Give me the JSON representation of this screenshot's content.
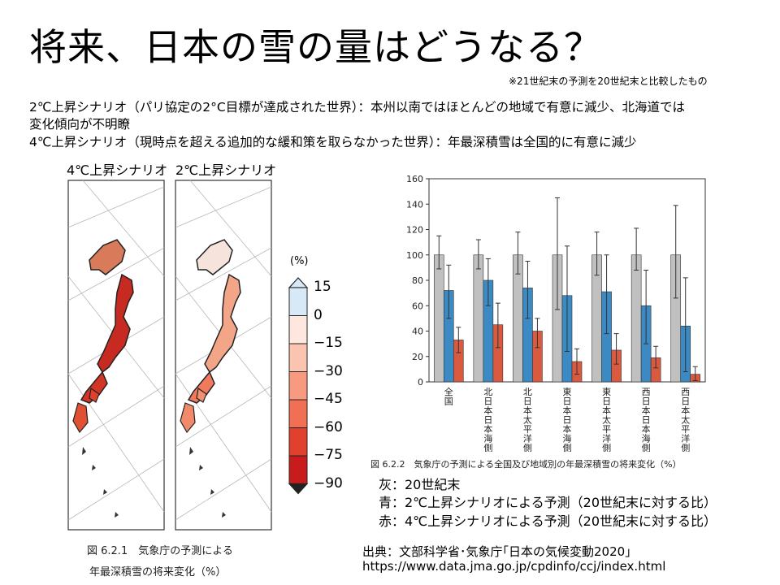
{
  "slide": {
    "title": "将来、日本の雪の量はどうなる？",
    "note": "※21世紀末の予測を20世紀末と比較したもの",
    "description_lines": [
      "2℃上昇シナリオ（パリ協定の2°C目標が達成された世界）：本州以南ではほとんどの地域で有意に減少、北海道では",
      "変化傾向が不明瞭",
      "4℃上昇シナリオ（現時点を超える追加的な緩和策を取らなかった世界）：年最深積雪は全国的に有意に減少"
    ]
  },
  "maps": {
    "labels": [
      "4℃上昇シナリオ",
      "2℃上昇シナリオ"
    ],
    "caption_line1": "図 6.2.1　気象庁の予測による",
    "caption_line2": "年最深積雪の将来変化（%）",
    "colorbar": {
      "unit": "(%)",
      "ticks": [
        "15",
        "0",
        "−15",
        "−30",
        "−45",
        "−60",
        "−75",
        "−90"
      ],
      "colors": [
        "#d7e8f7",
        "#fde7de",
        "#fbc4b0",
        "#f79a80",
        "#f06f55",
        "#e0402d",
        "#c81b1b"
      ]
    }
  },
  "chart_data": {
    "type": "bar",
    "caption": "図 6.2.2　気象庁の予測による全国及び地域別の年最深積雪の将来変化（%）",
    "categories": [
      "全国",
      "北日本日本海側",
      "北日本太平洋側",
      "東日本日本海側",
      "東日本太平洋側",
      "西日本日本海側",
      "西日本太平洋側"
    ],
    "series": [
      {
        "color": "#c0c0c0",
        "values": [
          100,
          100,
          100,
          100,
          100,
          100,
          100
        ],
        "err_low": [
          89,
          89,
          85,
          57,
          84,
          88,
          66
        ],
        "err_high": [
          115,
          112,
          118,
          145,
          118,
          121,
          139
        ]
      },
      {
        "color": "#3b8ac4",
        "values": [
          72,
          80,
          74,
          68,
          71,
          60,
          44
        ],
        "err_low": [
          50,
          60,
          50,
          24,
          38,
          30,
          8
        ],
        "err_high": [
          92,
          97,
          95,
          107,
          100,
          88,
          82
        ]
      },
      {
        "color": "#d95a3f",
        "values": [
          33,
          45,
          40,
          16,
          25,
          19,
          6
        ],
        "err_low": [
          23,
          27,
          27,
          6,
          14,
          11,
          1
        ],
        "err_high": [
          43,
          62,
          50,
          26,
          38,
          28,
          12
        ]
      }
    ],
    "ylim": [
      0,
      160
    ],
    "yticks": [
      0,
      20,
      40,
      60,
      80,
      100,
      120,
      140,
      160
    ],
    "grid": false,
    "legend_lines": [
      "灰：20世紀末",
      "青：2℃上昇シナリオによる予測（20世紀末に対する比）",
      "赤：4℃上昇シナリオによる予測（20世紀末に対する比）"
    ]
  },
  "source": {
    "line1": "出典：文部科学省･気象庁｢日本の気候変動2020｣",
    "line2": "https://www.data.jma.go.jp/cpdinfo/ccj/index.html"
  }
}
